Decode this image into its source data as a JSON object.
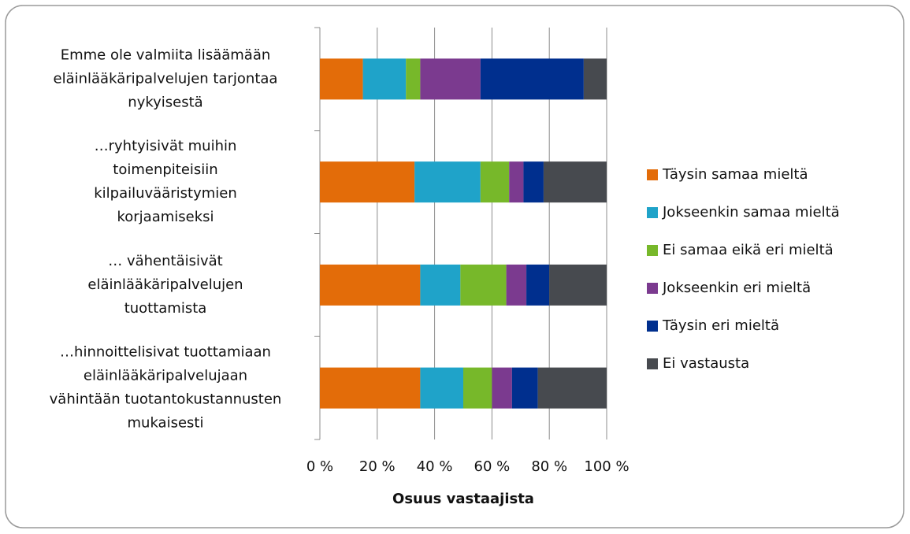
{
  "chart_data": {
    "type": "stacked_bar_horizontal",
    "x_label": "Osuus vastaajista",
    "categories": [
      "Emme ole valmiita lisäämään\neläinlääkäripalvelujen tarjontaa\nnykyisestä",
      "…ryhtyisivät muihin\ntoimenpiteisiin\nkilpailuvääristymien\nkorjaamiseksi",
      "… vähentäisivät\neläinlääkäripalvelujen\ntuottamista",
      "…hinnoittelisivat tuottamiaan\neläinlääkäripalvelujaan\nvähintään tuotantokustannusten\nmukaisesti"
    ],
    "series": [
      {
        "name": "Täysin samaa mieltä",
        "color": "#e36c09",
        "values": [
          15,
          33,
          35,
          35
        ]
      },
      {
        "name": "Jokseenkin samaa mieltä",
        "color": "#1fa3c9",
        "values": [
          15,
          23,
          14,
          15
        ]
      },
      {
        "name": "Ei samaa eikä eri mieltä",
        "color": "#77b82a",
        "values": [
          5,
          10,
          16,
          10
        ]
      },
      {
        "name": "Jokseenkin eri mieltä",
        "color": "#7b3a8f",
        "values": [
          21,
          5,
          7,
          7
        ]
      },
      {
        "name": "Täysin eri mieltä",
        "color": "#002f8e",
        "values": [
          36,
          7,
          8,
          9
        ]
      },
      {
        "name": "Ei vastausta",
        "color": "#474a4f",
        "values": [
          8,
          22,
          20,
          24
        ]
      }
    ],
    "xlim": [
      0,
      100
    ],
    "xticks": [
      {
        "value": 0,
        "label": "0 %"
      },
      {
        "value": 20,
        "label": "20 %"
      },
      {
        "value": 40,
        "label": "40 %"
      },
      {
        "value": 60,
        "label": "60 %"
      },
      {
        "value": 80,
        "label": "80 %"
      },
      {
        "value": 100,
        "label": "100 %"
      }
    ],
    "grid": true,
    "legend": "right"
  }
}
